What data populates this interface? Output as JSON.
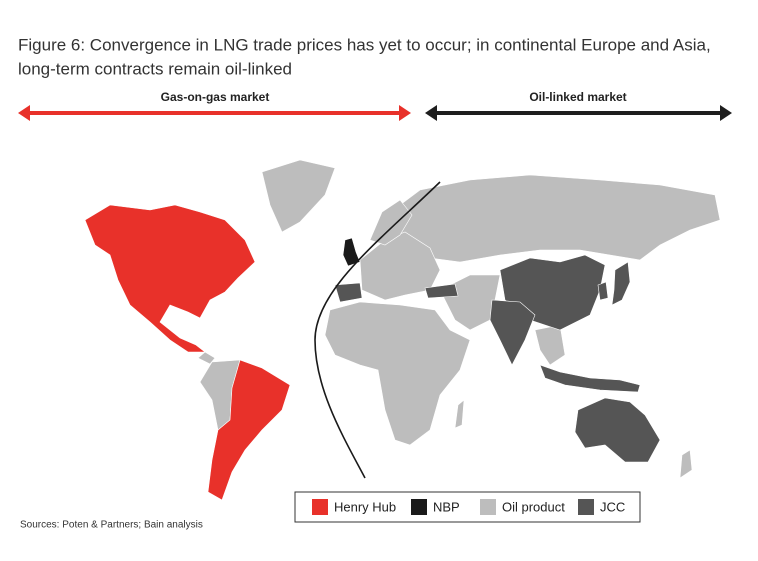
{
  "header": {
    "title_lines": [
      "Figure 6: Convergence in LNG trade prices has yet to occur; in continental Europe and Asia,",
      "long-term contracts remain oil-linked"
    ]
  },
  "markets": [
    {
      "label": "Gas-on-gas market",
      "color": "#e8312a"
    },
    {
      "label": "Oil-linked market",
      "color": "#1e1e1e"
    }
  ],
  "legend": [
    {
      "label": "Henry Hub",
      "color": "#e8312a"
    },
    {
      "label": "NBP",
      "color": "#1a1a1a"
    },
    {
      "label": "Oil product",
      "color": "#bdbdbd"
    },
    {
      "label": "JCC",
      "color": "#555555"
    }
  ],
  "source": "Sources: Poten & Partners; Bain analysis"
}
